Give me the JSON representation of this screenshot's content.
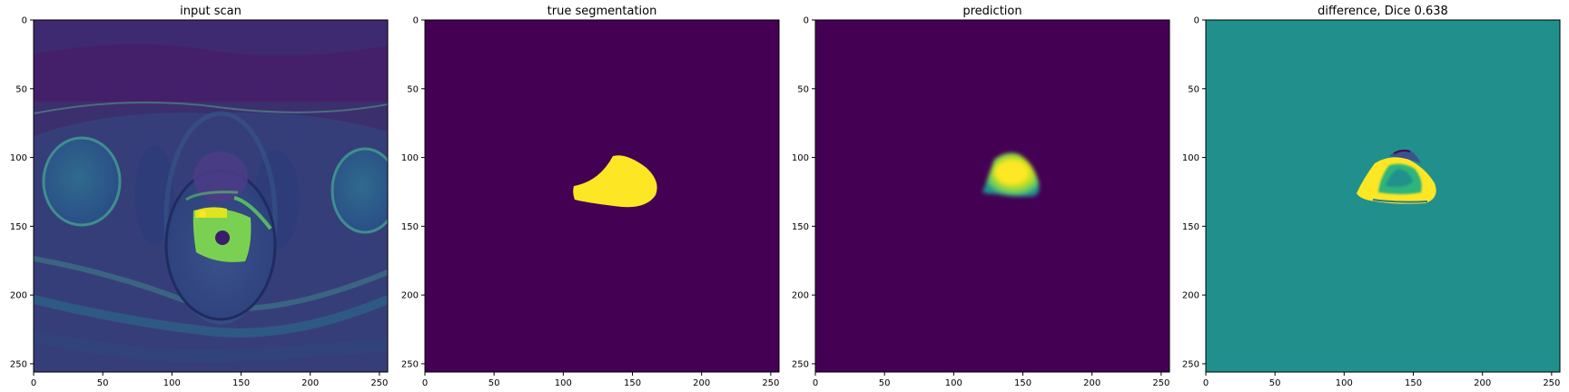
{
  "figure": {
    "colormap": "viridis",
    "colors": {
      "viridis_dark": "#440154",
      "viridis_mid": "#21908c",
      "viridis_light": "#fde725",
      "background": "#ffffff",
      "axes": "#000000"
    },
    "panels": [
      {
        "id": "input-scan",
        "title": "input scan",
        "content": "mri-slice",
        "x_ticks": [
          "0",
          "50",
          "100",
          "150",
          "200",
          "250"
        ],
        "y_ticks": [
          "0",
          "50",
          "100",
          "150",
          "200",
          "250"
        ]
      },
      {
        "id": "true-segmentation",
        "title": "true segmentation",
        "content": "mask-true",
        "x_ticks": [
          "0",
          "50",
          "100",
          "150",
          "200",
          "250"
        ],
        "y_ticks": [
          "0",
          "50",
          "100",
          "150",
          "200",
          "250"
        ]
      },
      {
        "id": "prediction",
        "title": "prediction",
        "content": "mask-pred",
        "x_ticks": [
          "0",
          "50",
          "100",
          "150",
          "200",
          "250"
        ],
        "y_ticks": [
          "0",
          "50",
          "100",
          "150",
          "200",
          "250"
        ]
      },
      {
        "id": "difference",
        "title": "difference, Dice 0.638",
        "content": "mask-diff",
        "x_ticks": [
          "0",
          "50",
          "100",
          "150",
          "200",
          "250"
        ],
        "y_ticks": [
          "0",
          "50",
          "100",
          "150",
          "200",
          "250"
        ]
      }
    ]
  }
}
